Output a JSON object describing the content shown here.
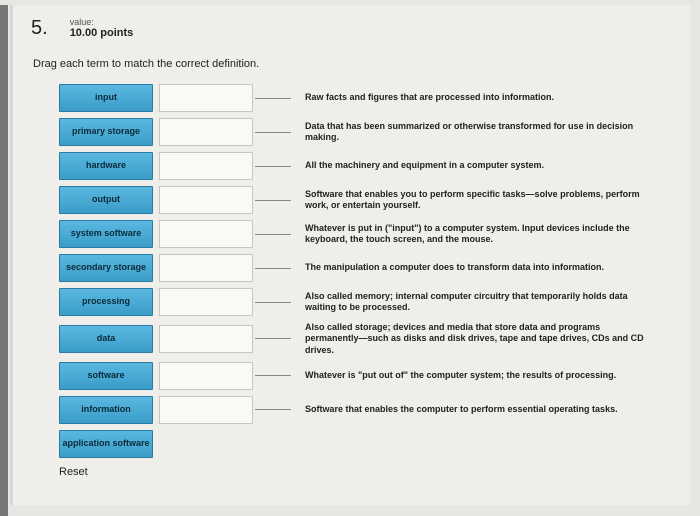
{
  "question": {
    "number": "5.",
    "value_label": "value:",
    "points": "10.00 points"
  },
  "instruction": "Drag each term to match the correct definition.",
  "rows": [
    {
      "term": "input",
      "definition": "Raw facts and figures that are processed into information."
    },
    {
      "term": "primary storage",
      "definition": "Data that has been summarized or otherwise transformed for use in decision making."
    },
    {
      "term": "hardware",
      "definition": "All the machinery and equipment in a computer system."
    },
    {
      "term": "output",
      "definition": "Software that enables you to perform specific tasks—solve problems, perform work, or entertain yourself."
    },
    {
      "term": "system software",
      "definition": "Whatever is put in (\"input\") to a computer system. Input devices include the keyboard, the touch screen, and the mouse."
    },
    {
      "term": "secondary storage",
      "definition": "The manipulation a computer does to transform data into information."
    },
    {
      "term": "processing",
      "definition": "Also called memory; internal computer circuitry that temporarily holds data waiting to be processed."
    },
    {
      "term": "data",
      "definition": "Also called storage; devices and media that store data and programs permanently—such as disks and disk drives, tape and tape drives, CDs and CD drives."
    },
    {
      "term": "software",
      "definition": "Whatever is \"put out of\" the computer system; the results of processing."
    },
    {
      "term": "information",
      "definition": "Software that enables the computer to perform essential operating tasks."
    }
  ],
  "extra_terms": [
    "application software"
  ],
  "reset_label": "Reset",
  "colors": {
    "term_bg_top": "#5ab8e0",
    "term_bg_bottom": "#3a9dc8",
    "term_border": "#2a7da0",
    "page_bg": "#f0eeea",
    "dropzone_border": "#c8c6c2"
  }
}
